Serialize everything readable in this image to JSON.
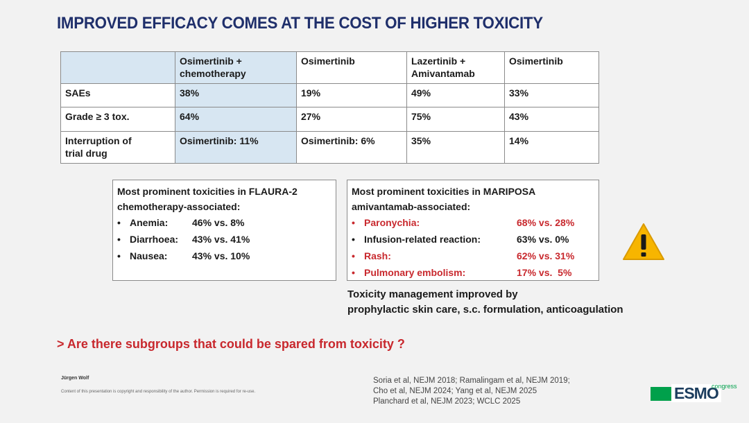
{
  "title": "IMPROVED EFFICACY COMES AT THE COST OF HIGHER TOXICITY",
  "table": {
    "headers": [
      "",
      "Osimertinib +\nchemotherapy",
      "Osimertinib",
      "Lazertinib +\nAmivantamab",
      "Osimertinib"
    ],
    "rows": [
      [
        "SAEs",
        "38%",
        "19%",
        "49%",
        "33%"
      ],
      [
        "Grade ≥ 3 tox.",
        "64%",
        "27%",
        "75%",
        "43%"
      ],
      [
        "Interruption of\ntrial drug",
        "Osimertinib: 11%",
        "Osimertinib: 6%",
        "35%",
        "14%"
      ]
    ]
  },
  "flaura": {
    "title": "Most prominent toxicities in FLAURA-2",
    "subtitle": "chemotherapy-associated:",
    "bullet": "•",
    "items": [
      {
        "label": "Anemia:",
        "value": "46% vs. 8%"
      },
      {
        "label": "Diarrhoea:",
        "value": "43% vs. 41%"
      },
      {
        "label": "Nausea:",
        "value": "43% vs. 10%"
      }
    ]
  },
  "mariposa": {
    "title": "Most prominent toxicities in MARIPOSA",
    "subtitle": "amivantamab-associated:",
    "bullet": "•",
    "items": [
      {
        "label": "Paronychia:",
        "value": "68% vs. 28%",
        "highlight": true
      },
      {
        "label": "Infusion-related reaction:",
        "value": "63% vs. 0%",
        "highlight": false
      },
      {
        "label": "Rash:",
        "value": "62% vs. 31%",
        "highlight": true
      },
      {
        "label": "Pulmonary embolism:",
        "value": "17% vs.  5%",
        "highlight": true
      }
    ]
  },
  "warning_icon": "warning-triangle-icon",
  "management_note": {
    "line1": "Toxicity management improved by",
    "line2": "prophylactic skin care, s.c. formulation, anticoagulation"
  },
  "question": "> Are there subgroups that could be spared from toxicity ?",
  "author": "Jürgen Wolf",
  "copyright": "Content of this presentation is copyright and responsibility of the author. Permission is required for re-use.",
  "references": [
    "Soria et al, NEJM 2018; Ramalingam et al, NEJM 2019;",
    "Cho et al, NEJM 2024; Yang et al, NEJM 2025",
    "Planchard et al, NEJM 2023; WCLC 2025"
  ],
  "logo": {
    "text": "ESMO",
    "suffix": "congress"
  },
  "colors": {
    "title": "#1f2f6b",
    "accent_red": "#c8282d",
    "highlight_cell": "#d7e6f2",
    "logo_green": "#00a04b"
  }
}
